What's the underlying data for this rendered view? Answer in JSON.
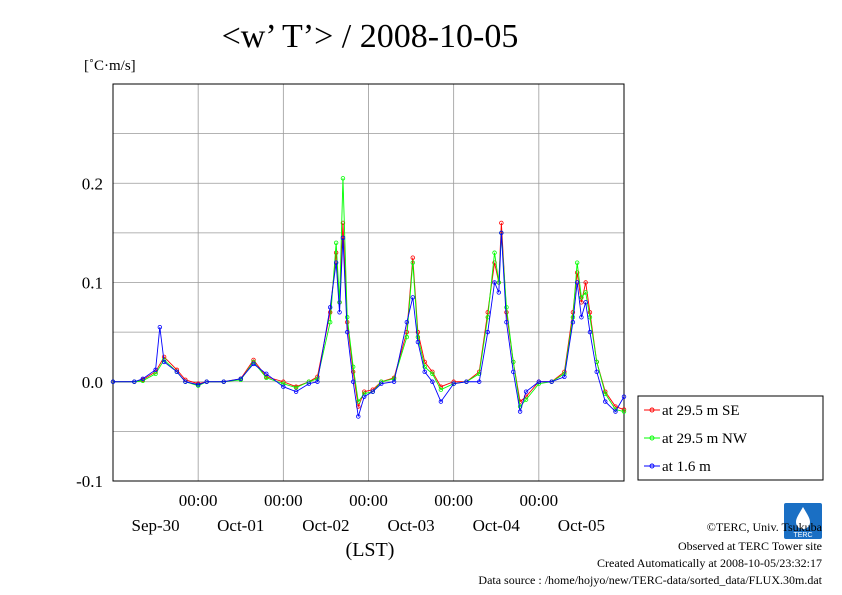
{
  "header": {
    "title": "<w’ T’> / 2008-10-05",
    "unit": "[˚C·m/s]"
  },
  "footer": {
    "credit": "©TERC, Univ. Tsukuba",
    "site": "Observed at TERC Tower site",
    "created": "Created Automatically at 2008-10-05/23:32:17",
    "source": "Data source : /home/hojyo/new/TERC-data/sorted_data/FLUX.30m.dat",
    "logo_text": "TERC"
  },
  "colors": {
    "series_se": "#ff0000",
    "series_nw": "#00ff00",
    "series_1m": "#0000ff",
    "grid": "#9a9a9a"
  },
  "chart_data": {
    "type": "line",
    "title": "<w’ T’> / 2008-10-05",
    "ylabel": "[˚C·m/s]",
    "xlabel": "(LST)",
    "ylim": [
      -0.1,
      0.3
    ],
    "yticks": [
      -0.1,
      0.0,
      0.1,
      0.2
    ],
    "ytick_labels": [
      "-0.1",
      "0.0",
      "0.1",
      "0.2"
    ],
    "xlim_days": [
      0,
      6
    ],
    "xtick_labels": [
      "00:00",
      "00:00",
      "00:00",
      "00:00",
      "00:00"
    ],
    "day_labels": [
      "Sep-30",
      "Oct-01",
      "Oct-02",
      "Oct-03",
      "Oct-04",
      "Oct-05"
    ],
    "grid": true,
    "legend_position": "right",
    "series": [
      {
        "name": "at 29.5 m SE",
        "color": "#ff0000",
        "points": [
          [
            0.0,
            0.0
          ],
          [
            0.25,
            0.0
          ],
          [
            0.35,
            0.002
          ],
          [
            0.5,
            0.01
          ],
          [
            0.6,
            0.025
          ],
          [
            0.75,
            0.012
          ],
          [
            0.85,
            0.002
          ],
          [
            1.0,
            -0.002
          ],
          [
            1.1,
            0.0
          ],
          [
            1.3,
            0.0
          ],
          [
            1.5,
            0.003
          ],
          [
            1.65,
            0.022
          ],
          [
            1.8,
            0.005
          ],
          [
            2.0,
            0.0
          ],
          [
            2.15,
            -0.005
          ],
          [
            2.3,
            0.0
          ],
          [
            2.4,
            0.005
          ],
          [
            2.55,
            0.07
          ],
          [
            2.62,
            0.13
          ],
          [
            2.66,
            0.08
          ],
          [
            2.7,
            0.16
          ],
          [
            2.75,
            0.06
          ],
          [
            2.82,
            0.01
          ],
          [
            2.88,
            -0.025
          ],
          [
            2.95,
            -0.01
          ],
          [
            3.05,
            -0.008
          ],
          [
            3.15,
            0.0
          ],
          [
            3.3,
            0.004
          ],
          [
            3.45,
            0.05
          ],
          [
            3.52,
            0.125
          ],
          [
            3.58,
            0.05
          ],
          [
            3.66,
            0.02
          ],
          [
            3.75,
            0.01
          ],
          [
            3.85,
            -0.005
          ],
          [
            4.0,
            0.0
          ],
          [
            4.15,
            0.0
          ],
          [
            4.3,
            0.01
          ],
          [
            4.4,
            0.07
          ],
          [
            4.48,
            0.12
          ],
          [
            4.53,
            0.1
          ],
          [
            4.56,
            0.16
          ],
          [
            4.62,
            0.07
          ],
          [
            4.7,
            0.02
          ],
          [
            4.78,
            -0.02
          ],
          [
            4.85,
            -0.015
          ],
          [
            5.0,
            0.0
          ],
          [
            5.15,
            0.0
          ],
          [
            5.3,
            0.01
          ],
          [
            5.4,
            0.07
          ],
          [
            5.45,
            0.11
          ],
          [
            5.5,
            0.08
          ],
          [
            5.55,
            0.1
          ],
          [
            5.6,
            0.07
          ],
          [
            5.68,
            0.02
          ],
          [
            5.78,
            -0.01
          ],
          [
            5.9,
            -0.025
          ],
          [
            6.0,
            -0.028
          ]
        ]
      },
      {
        "name": "at 29.5 m NW",
        "color": "#00ff00",
        "points": [
          [
            0.0,
            0.0
          ],
          [
            0.25,
            0.0
          ],
          [
            0.35,
            0.001
          ],
          [
            0.5,
            0.008
          ],
          [
            0.6,
            0.022
          ],
          [
            0.75,
            0.01
          ],
          [
            0.85,
            0.0
          ],
          [
            1.0,
            -0.004
          ],
          [
            1.1,
            0.0
          ],
          [
            1.3,
            0.0
          ],
          [
            1.5,
            0.002
          ],
          [
            1.65,
            0.02
          ],
          [
            1.8,
            0.004
          ],
          [
            2.0,
            -0.002
          ],
          [
            2.15,
            -0.006
          ],
          [
            2.3,
            0.0
          ],
          [
            2.4,
            0.003
          ],
          [
            2.55,
            0.06
          ],
          [
            2.62,
            0.14
          ],
          [
            2.66,
            0.08
          ],
          [
            2.7,
            0.205
          ],
          [
            2.75,
            0.065
          ],
          [
            2.82,
            0.015
          ],
          [
            2.88,
            -0.02
          ],
          [
            2.95,
            -0.012
          ],
          [
            3.05,
            -0.01
          ],
          [
            3.15,
            0.0
          ],
          [
            3.3,
            0.003
          ],
          [
            3.45,
            0.045
          ],
          [
            3.52,
            0.12
          ],
          [
            3.58,
            0.045
          ],
          [
            3.66,
            0.015
          ],
          [
            3.75,
            0.008
          ],
          [
            3.85,
            -0.008
          ],
          [
            4.0,
            -0.002
          ],
          [
            4.15,
            0.0
          ],
          [
            4.3,
            0.008
          ],
          [
            4.4,
            0.065
          ],
          [
            4.48,
            0.13
          ],
          [
            4.53,
            0.1
          ],
          [
            4.56,
            0.15
          ],
          [
            4.62,
            0.075
          ],
          [
            4.7,
            0.02
          ],
          [
            4.78,
            -0.025
          ],
          [
            4.85,
            -0.018
          ],
          [
            5.0,
            -0.002
          ],
          [
            5.15,
            0.0
          ],
          [
            5.3,
            0.008
          ],
          [
            5.4,
            0.065
          ],
          [
            5.45,
            0.12
          ],
          [
            5.5,
            0.085
          ],
          [
            5.55,
            0.09
          ],
          [
            5.6,
            0.065
          ],
          [
            5.68,
            0.02
          ],
          [
            5.78,
            -0.012
          ],
          [
            5.9,
            -0.028
          ],
          [
            6.0,
            -0.03
          ]
        ]
      },
      {
        "name": "at 1.6 m",
        "color": "#0000ff",
        "points": [
          [
            0.0,
            0.0
          ],
          [
            0.25,
            0.0
          ],
          [
            0.35,
            0.003
          ],
          [
            0.5,
            0.012
          ],
          [
            0.55,
            0.055
          ],
          [
            0.6,
            0.02
          ],
          [
            0.75,
            0.01
          ],
          [
            0.85,
            0.0
          ],
          [
            1.0,
            -0.003
          ],
          [
            1.1,
            0.0
          ],
          [
            1.3,
            0.0
          ],
          [
            1.5,
            0.003
          ],
          [
            1.65,
            0.018
          ],
          [
            1.8,
            0.008
          ],
          [
            2.0,
            -0.005
          ],
          [
            2.15,
            -0.01
          ],
          [
            2.3,
            -0.002
          ],
          [
            2.4,
            0.0
          ],
          [
            2.55,
            0.075
          ],
          [
            2.62,
            0.12
          ],
          [
            2.66,
            0.07
          ],
          [
            2.7,
            0.145
          ],
          [
            2.75,
            0.05
          ],
          [
            2.82,
            0.0
          ],
          [
            2.88,
            -0.035
          ],
          [
            2.95,
            -0.015
          ],
          [
            3.05,
            -0.01
          ],
          [
            3.15,
            -0.002
          ],
          [
            3.3,
            0.0
          ],
          [
            3.45,
            0.06
          ],
          [
            3.52,
            0.085
          ],
          [
            3.58,
            0.04
          ],
          [
            3.66,
            0.01
          ],
          [
            3.75,
            0.0
          ],
          [
            3.85,
            -0.02
          ],
          [
            4.0,
            -0.002
          ],
          [
            4.15,
            0.0
          ],
          [
            4.3,
            0.0
          ],
          [
            4.4,
            0.05
          ],
          [
            4.48,
            0.1
          ],
          [
            4.53,
            0.09
          ],
          [
            4.56,
            0.15
          ],
          [
            4.62,
            0.06
          ],
          [
            4.7,
            0.01
          ],
          [
            4.78,
            -0.03
          ],
          [
            4.85,
            -0.01
          ],
          [
            5.0,
            0.0
          ],
          [
            5.15,
            0.0
          ],
          [
            5.3,
            0.005
          ],
          [
            5.4,
            0.06
          ],
          [
            5.45,
            0.1
          ],
          [
            5.5,
            0.065
          ],
          [
            5.55,
            0.08
          ],
          [
            5.6,
            0.05
          ],
          [
            5.68,
            0.01
          ],
          [
            5.78,
            -0.02
          ],
          [
            5.9,
            -0.03
          ],
          [
            6.0,
            -0.015
          ]
        ]
      }
    ]
  }
}
